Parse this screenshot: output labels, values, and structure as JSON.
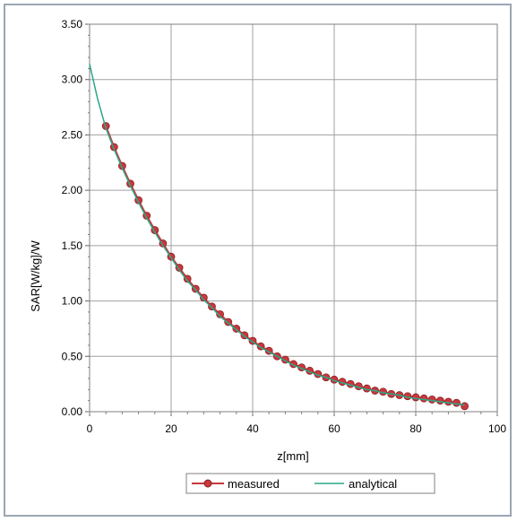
{
  "chart_data": {
    "type": "line",
    "xlabel": "z[mm]",
    "ylabel": "SAR[W/kg]/W",
    "xlim": [
      0,
      100
    ],
    "ylim": [
      0,
      3.5
    ],
    "x_ticks": [
      "0",
      "20",
      "40",
      "60",
      "80",
      "100"
    ],
    "y_ticks": [
      "0.00",
      "0.50",
      "1.00",
      "1.50",
      "2.00",
      "2.50",
      "3.00",
      "3.50"
    ],
    "grid": true,
    "legend_position": "bottom",
    "series": [
      {
        "name": "measured",
        "color": "#c8383c",
        "marker": "circle",
        "x": [
          4,
          6,
          8,
          10,
          12,
          14,
          16,
          18,
          20,
          22,
          24,
          26,
          28,
          30,
          32,
          34,
          36,
          38,
          40,
          42,
          44,
          46,
          48,
          50,
          52,
          54,
          56,
          58,
          60,
          62,
          64,
          66,
          68,
          70,
          72,
          74,
          76,
          78,
          80,
          82,
          84,
          86,
          88,
          90,
          92
        ],
        "values": [
          2.58,
          2.39,
          2.22,
          2.06,
          1.91,
          1.77,
          1.64,
          1.52,
          1.4,
          1.3,
          1.2,
          1.11,
          1.03,
          0.95,
          0.88,
          0.81,
          0.75,
          0.69,
          0.64,
          0.59,
          0.55,
          0.5,
          0.47,
          0.43,
          0.4,
          0.37,
          0.34,
          0.31,
          0.29,
          0.27,
          0.25,
          0.23,
          0.21,
          0.19,
          0.18,
          0.16,
          0.15,
          0.14,
          0.13,
          0.12,
          0.11,
          0.1,
          0.09,
          0.08,
          0.05
        ]
      },
      {
        "name": "analytical",
        "color": "#2aa889",
        "marker": "none",
        "x": [
          0,
          2,
          4,
          6,
          8,
          10,
          12,
          14,
          16,
          18,
          20,
          22,
          24,
          26,
          28,
          30,
          32,
          34,
          36,
          38,
          40,
          42,
          44,
          46,
          48,
          50,
          52,
          54,
          56,
          58,
          60,
          62,
          64,
          66,
          68,
          70,
          72,
          74,
          76,
          78,
          80,
          82,
          84,
          86,
          88,
          90,
          92
        ],
        "values": [
          3.14,
          2.82,
          2.56,
          2.37,
          2.2,
          2.04,
          1.89,
          1.75,
          1.62,
          1.5,
          1.39,
          1.28,
          1.18,
          1.1,
          1.01,
          0.94,
          0.86,
          0.8,
          0.74,
          0.68,
          0.63,
          0.58,
          0.54,
          0.5,
          0.46,
          0.42,
          0.39,
          0.36,
          0.33,
          0.31,
          0.28,
          0.26,
          0.24,
          0.22,
          0.2,
          0.19,
          0.17,
          0.16,
          0.15,
          0.13,
          0.12,
          0.11,
          0.1,
          0.09,
          0.08,
          0.07,
          0.06
        ]
      }
    ]
  }
}
